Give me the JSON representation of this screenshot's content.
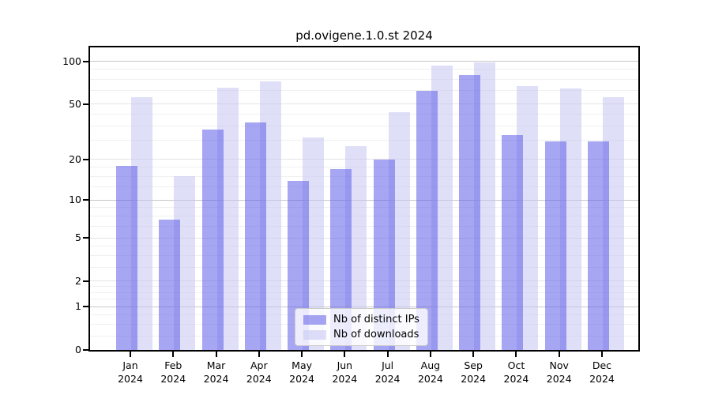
{
  "title": "pd.ovigene.1.0.st 2024",
  "chart_data": {
    "type": "bar",
    "title": "pd.ovigene.1.0.st 2024",
    "categories": [
      "Jan",
      "Feb",
      "Mar",
      "Apr",
      "May",
      "Jun",
      "Jul",
      "Aug",
      "Sep",
      "Oct",
      "Nov",
      "Dec"
    ],
    "category_year": "2024",
    "series": [
      {
        "name": "Nb of distinct IPs",
        "values": [
          18,
          7,
          33,
          37,
          14,
          17,
          20,
          62,
          80,
          30,
          27,
          27
        ],
        "fill": "rgba(92,92,232,0.55)",
        "color_hex": "#a5a5f2"
      },
      {
        "name": "Nb of downloads",
        "values": [
          56,
          15,
          65,
          72,
          29,
          25,
          44,
          93,
          98,
          67,
          64,
          56
        ],
        "fill": "rgba(196,196,243,0.55)",
        "color_hex": "#dedef8"
      }
    ],
    "xlabel": "",
    "ylabel": "",
    "yticks": [
      0,
      1,
      2,
      5,
      10,
      20,
      50,
      100
    ],
    "strong_gridlines": [
      1,
      10,
      100
    ],
    "scale": "log10(1+v)",
    "ylim": [
      0,
      125
    ],
    "grid": true,
    "legend_position": "lower center inside",
    "background": "#ffffff",
    "axis_color": "#000000"
  }
}
